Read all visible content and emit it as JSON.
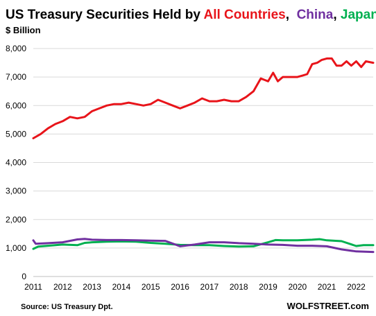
{
  "chart_data": {
    "type": "line",
    "title": {
      "parts": [
        {
          "text": "US Treasury Securities Held by ",
          "color": "#000000"
        },
        {
          "text": "All Countries",
          "color": "#e8141a"
        },
        {
          "text": ",  ",
          "color": "#000000"
        },
        {
          "text": "China",
          "color": "#7030a0"
        },
        {
          "text": ", ",
          "color": "#000000"
        },
        {
          "text": "Japan",
          "color": "#00b050"
        }
      ]
    },
    "subtitle": "$ Billion",
    "source": "Source: US Treasury  Dpt.",
    "brand": "WOLFSTREET.com",
    "ylim": [
      0,
      8000
    ],
    "yticks": [
      0,
      1000,
      2000,
      3000,
      4000,
      5000,
      6000,
      7000,
      8000
    ],
    "ytick_labels": [
      "0",
      "1,000",
      "2,000",
      "3,000",
      "4,000",
      "5,000",
      "6,000",
      "7,000",
      "8,000"
    ],
    "xlim": [
      2011.0,
      2022.58
    ],
    "xticks": [
      2011,
      2012,
      2013,
      2014,
      2015,
      2016,
      2017,
      2018,
      2019,
      2020,
      2021,
      2022
    ],
    "xtick_labels": [
      "2011",
      "2012",
      "2013",
      "2014",
      "2015",
      "2016",
      "2017",
      "2018",
      "2019",
      "2020",
      "2021",
      "2022"
    ],
    "grid": "horizontal",
    "series": [
      {
        "name": "All Countries",
        "color": "#e8141a",
        "x": [
          2011.0,
          2011.25,
          2011.5,
          2011.75,
          2012.0,
          2012.25,
          2012.5,
          2012.75,
          2013.0,
          2013.25,
          2013.5,
          2013.75,
          2014.0,
          2014.25,
          2014.5,
          2014.75,
          2015.0,
          2015.25,
          2015.5,
          2015.75,
          2016.0,
          2016.25,
          2016.5,
          2016.75,
          2017.0,
          2017.25,
          2017.5,
          2017.75,
          2018.0,
          2018.25,
          2018.5,
          2018.75,
          2019.0,
          2019.17,
          2019.33,
          2019.5,
          2019.75,
          2020.0,
          2020.17,
          2020.33,
          2020.5,
          2020.67,
          2020.83,
          2021.0,
          2021.17,
          2021.33,
          2021.5,
          2021.67,
          2021.83,
          2022.0,
          2022.17,
          2022.33,
          2022.58
        ],
        "values": [
          4850,
          5000,
          5200,
          5350,
          5450,
          5600,
          5550,
          5600,
          5800,
          5900,
          6000,
          6050,
          6050,
          6100,
          6050,
          6000,
          6050,
          6200,
          6100,
          6000,
          5900,
          6000,
          6100,
          6250,
          6150,
          6150,
          6200,
          6150,
          6150,
          6300,
          6500,
          6950,
          6850,
          7150,
          6850,
          7000,
          7000,
          7000,
          7050,
          7100,
          7450,
          7500,
          7600,
          7650,
          7650,
          7400,
          7400,
          7550,
          7400,
          7550,
          7350,
          7550,
          7500
        ]
      },
      {
        "name": "China",
        "color": "#7030a0",
        "x": [
          2011.0,
          2011.08,
          2011.5,
          2012.0,
          2012.5,
          2012.75,
          2013.0,
          2013.5,
          2014.0,
          2014.5,
          2015.0,
          2015.5,
          2016.0,
          2016.5,
          2017.0,
          2017.5,
          2018.0,
          2018.5,
          2019.0,
          2019.5,
          2020.0,
          2020.5,
          2021.0,
          2021.5,
          2022.0,
          2022.58
        ],
        "values": [
          1270,
          1150,
          1170,
          1200,
          1300,
          1320,
          1290,
          1280,
          1280,
          1270,
          1260,
          1250,
          1060,
          1120,
          1200,
          1200,
          1170,
          1150,
          1120,
          1110,
          1080,
          1080,
          1060,
          950,
          880,
          860
        ]
      },
      {
        "name": "Japan",
        "color": "#00b050",
        "x": [
          2011.0,
          2011.17,
          2011.5,
          2012.0,
          2012.5,
          2012.75,
          2013.0,
          2013.5,
          2014.0,
          2014.5,
          2015.0,
          2015.5,
          2016.0,
          2016.5,
          2017.0,
          2017.5,
          2018.0,
          2018.5,
          2019.0,
          2019.25,
          2019.5,
          2020.0,
          2020.5,
          2020.75,
          2021.0,
          2021.5,
          2022.0,
          2022.25,
          2022.58
        ],
        "values": [
          970,
          1050,
          1080,
          1120,
          1100,
          1180,
          1200,
          1220,
          1230,
          1220,
          1180,
          1150,
          1110,
          1100,
          1100,
          1070,
          1050,
          1060,
          1200,
          1280,
          1270,
          1270,
          1290,
          1310,
          1270,
          1240,
          1070,
          1100,
          1100
        ]
      }
    ]
  }
}
